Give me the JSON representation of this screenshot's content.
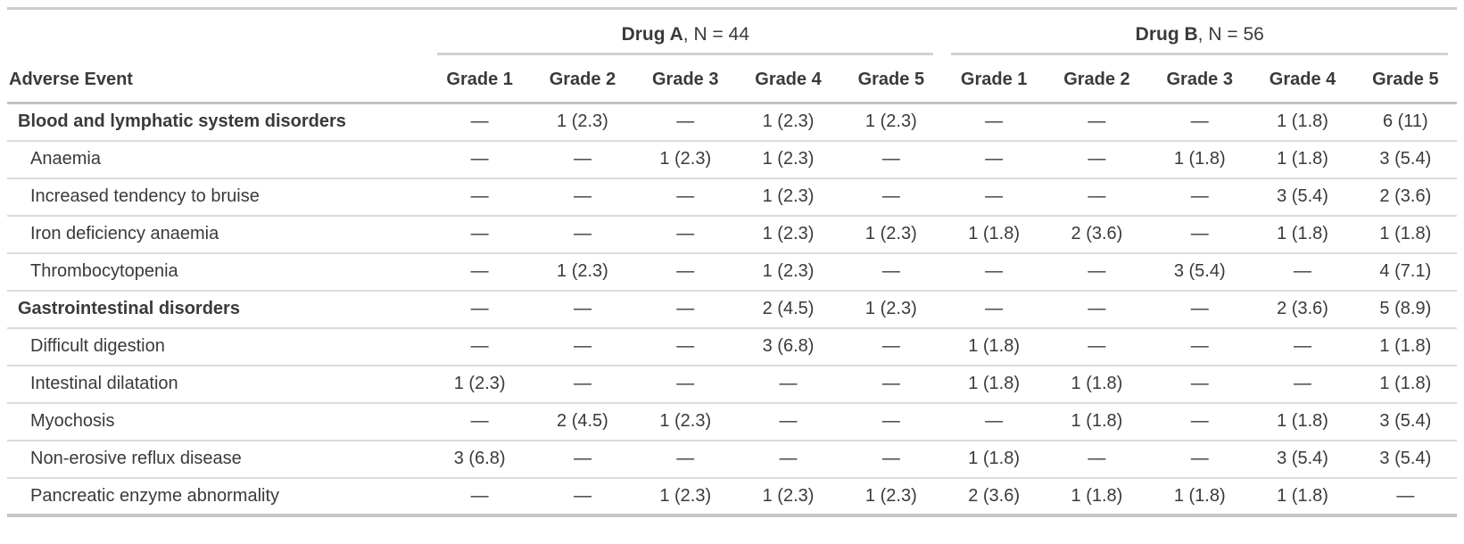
{
  "colors": {
    "text": "#3a3a3a",
    "table_border_top": "#cccccc",
    "spanner_underline": "#d2d2d2",
    "header_underline": "#c3c3c3",
    "row_separator": "#dbdbdb",
    "table_border_bottom": "#c6c6c6",
    "background": "#ffffff"
  },
  "table": {
    "event_header": "Adverse Event",
    "spanners": [
      {
        "drug": "Drug A",
        "suffix": ", N = 44"
      },
      {
        "drug": "Drug B",
        "suffix": ", N = 56"
      }
    ],
    "grades": [
      "Grade 1",
      "Grade 2",
      "Grade 3",
      "Grade 4",
      "Grade 5"
    ],
    "empty_value": "—",
    "rows": [
      {
        "label": "Blood and lymphatic system disorders",
        "group": true,
        "drug_a": [
          "—",
          "1 (2.3)",
          "—",
          "1 (2.3)",
          "1 (2.3)"
        ],
        "drug_b": [
          "—",
          "—",
          "—",
          "1 (1.8)",
          "6 (11)"
        ]
      },
      {
        "label": "Anaemia",
        "group": false,
        "drug_a": [
          "—",
          "—",
          "1 (2.3)",
          "1 (2.3)",
          "—"
        ],
        "drug_b": [
          "—",
          "—",
          "1 (1.8)",
          "1 (1.8)",
          "3 (5.4)"
        ]
      },
      {
        "label": "Increased tendency to bruise",
        "group": false,
        "drug_a": [
          "—",
          "—",
          "—",
          "1 (2.3)",
          "—"
        ],
        "drug_b": [
          "—",
          "—",
          "—",
          "3 (5.4)",
          "2 (3.6)"
        ]
      },
      {
        "label": "Iron deficiency anaemia",
        "group": false,
        "drug_a": [
          "—",
          "—",
          "—",
          "1 (2.3)",
          "1 (2.3)"
        ],
        "drug_b": [
          "1 (1.8)",
          "2 (3.6)",
          "—",
          "1 (1.8)",
          "1 (1.8)"
        ]
      },
      {
        "label": "Thrombocytopenia",
        "group": false,
        "drug_a": [
          "—",
          "1 (2.3)",
          "—",
          "1 (2.3)",
          "—"
        ],
        "drug_b": [
          "—",
          "—",
          "3 (5.4)",
          "—",
          "4 (7.1)"
        ]
      },
      {
        "label": "Gastrointestinal disorders",
        "group": true,
        "drug_a": [
          "—",
          "—",
          "—",
          "2 (4.5)",
          "1 (2.3)"
        ],
        "drug_b": [
          "—",
          "—",
          "—",
          "2 (3.6)",
          "5 (8.9)"
        ]
      },
      {
        "label": "Difficult digestion",
        "group": false,
        "drug_a": [
          "—",
          "—",
          "—",
          "3 (6.8)",
          "—"
        ],
        "drug_b": [
          "1 (1.8)",
          "—",
          "—",
          "—",
          "1 (1.8)"
        ]
      },
      {
        "label": "Intestinal dilatation",
        "group": false,
        "drug_a": [
          "1 (2.3)",
          "—",
          "—",
          "—",
          "—"
        ],
        "drug_b": [
          "1 (1.8)",
          "1 (1.8)",
          "—",
          "—",
          "1 (1.8)"
        ]
      },
      {
        "label": "Myochosis",
        "group": false,
        "drug_a": [
          "—",
          "2 (4.5)",
          "1 (2.3)",
          "—",
          "—"
        ],
        "drug_b": [
          "—",
          "1 (1.8)",
          "—",
          "1 (1.8)",
          "3 (5.4)"
        ]
      },
      {
        "label": "Non-erosive reflux disease",
        "group": false,
        "drug_a": [
          "3 (6.8)",
          "—",
          "—",
          "—",
          "—"
        ],
        "drug_b": [
          "1 (1.8)",
          "—",
          "—",
          "3 (5.4)",
          "3 (5.4)"
        ]
      },
      {
        "label": "Pancreatic enzyme abnormality",
        "group": false,
        "drug_a": [
          "—",
          "—",
          "1 (2.3)",
          "1 (2.3)",
          "1 (2.3)"
        ],
        "drug_b": [
          "2 (3.6)",
          "1 (1.8)",
          "1 (1.8)",
          "1 (1.8)",
          "—"
        ]
      }
    ]
  }
}
